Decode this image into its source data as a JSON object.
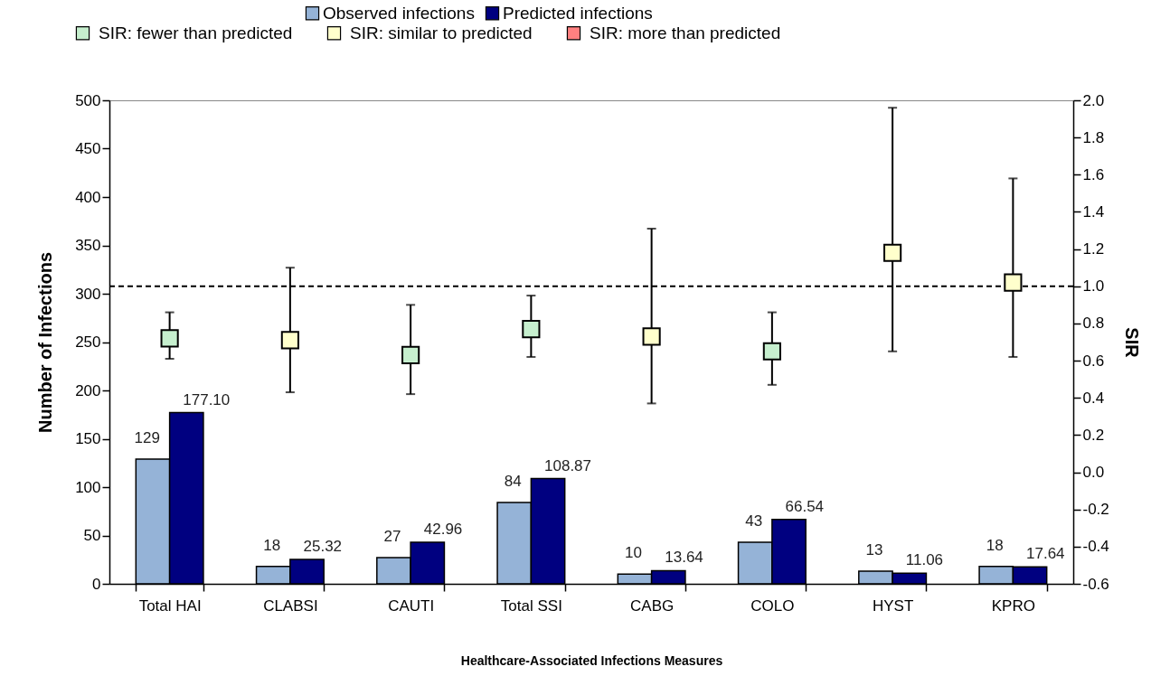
{
  "chart_data": {
    "type": "bar",
    "xlabel": "Healthcare-Associated Infections Measures",
    "ylabel": "Number of Infections",
    "y2label": "SIR",
    "categories": [
      "Total HAI",
      "CLABSI",
      "CAUTI",
      "Total SSI",
      "CABG",
      "COLO",
      "HYST",
      "KPRO"
    ],
    "series": [
      {
        "name": "Observed infections",
        "type": "bar",
        "color": "#95b3d7",
        "values": [
          129,
          18,
          27,
          84,
          10,
          43,
          13,
          18
        ],
        "value_labels": [
          "129",
          "18",
          "27",
          "84",
          "10",
          "43",
          "13",
          "18"
        ]
      },
      {
        "name": "Predicted infections",
        "type": "bar",
        "color": "#000080",
        "values": [
          177.1,
          25.32,
          42.96,
          108.87,
          13.64,
          66.54,
          11.06,
          17.64
        ],
        "value_labels": [
          "177.10",
          "25.32",
          "42.96",
          "108.87",
          "13.64",
          "66.54",
          "11.06",
          "17.64"
        ]
      },
      {
        "name": "SIR: fewer than predicted",
        "type": "scatter",
        "axis": "y2",
        "color": "#c6efce",
        "values": [
          0.72,
          null,
          0.63,
          0.77,
          null,
          0.65,
          null,
          null
        ],
        "errors": [
          [
            0.61,
            0.86
          ],
          null,
          [
            0.42,
            0.9
          ],
          [
            0.62,
            0.95
          ],
          null,
          [
            0.47,
            0.86
          ],
          null,
          null
        ]
      },
      {
        "name": "SIR: similar to predicted",
        "type": "scatter",
        "axis": "y2",
        "color": "#ffffcc",
        "values": [
          null,
          0.71,
          null,
          null,
          0.73,
          null,
          1.18,
          1.02
        ],
        "errors": [
          null,
          [
            0.43,
            1.1
          ],
          null,
          null,
          [
            0.37,
            1.31
          ],
          null,
          [
            0.65,
            1.96
          ],
          [
            0.62,
            1.58
          ]
        ]
      },
      {
        "name": "SIR: more than predicted",
        "type": "scatter",
        "axis": "y2",
        "color": "#ff8080",
        "values": [
          null,
          null,
          null,
          null,
          null,
          null,
          null,
          null
        ]
      }
    ],
    "ylim": [
      0,
      500
    ],
    "yticks": [
      0,
      50,
      100,
      150,
      200,
      250,
      300,
      350,
      400,
      450,
      500
    ],
    "y2lim": [
      -0.6,
      2.0
    ],
    "y2ticks": [
      {
        "value": -0.6,
        "label": "-0.6"
      },
      {
        "value": -0.4,
        "label": "-0.4"
      },
      {
        "value": -0.2,
        "label": "-0.2"
      },
      {
        "value": 0,
        "label": "0.0"
      },
      {
        "value": 0.2,
        "label": "0.2"
      },
      {
        "value": 0.4,
        "label": "0.4"
      },
      {
        "value": 0.6,
        "label": "0.6"
      },
      {
        "value": 0.8,
        "label": "0.8"
      },
      {
        "value": 1.0,
        "label": "1.0"
      },
      {
        "value": 1.2,
        "label": "1.2"
      },
      {
        "value": 1.4,
        "label": "1.4"
      },
      {
        "value": 1.6,
        "label": "1.6"
      },
      {
        "value": 1.8,
        "label": "1.8"
      },
      {
        "value": 2.0,
        "label": "2.0"
      }
    ],
    "ref_lines": [
      {
        "axis": "y2",
        "value": 1.0,
        "line_style": "dashed"
      }
    ],
    "marker": "square",
    "legend": "top"
  }
}
